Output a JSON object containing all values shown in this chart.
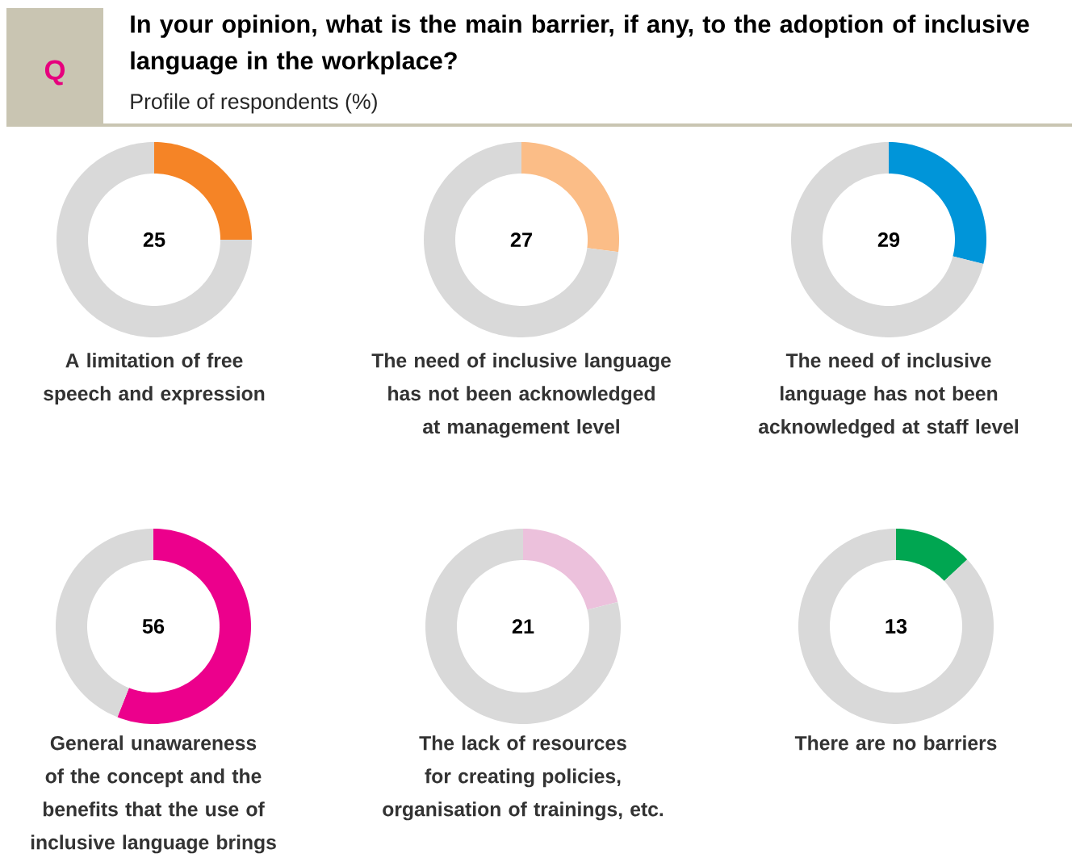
{
  "chart_data": [
    {
      "type": "other",
      "title": "In your opinion, what is the main barrier, if any, to the adoption of inclusive language in the workplace?",
      "subtitle": "Profile of respondents (%)",
      "annotations": [
        "Q"
      ]
    },
    {
      "type": "donut",
      "title": "A limitation of free speech and expression",
      "categories": [
        null,
        null
      ],
      "values": [
        25,
        75
      ],
      "colors": [
        "#f58426",
        "#d9d9d9"
      ],
      "annotations": [
        "25"
      ]
    },
    {
      "type": "donut",
      "title": "The need of inclusive language has not been acknowledged at management level",
      "categories": [
        null,
        null
      ],
      "values": [
        27,
        73
      ],
      "colors": [
        "#fbbd87",
        "#d9d9d9"
      ],
      "annotations": [
        "27"
      ]
    },
    {
      "type": "donut",
      "title": "The need of inclusive language has not been acknowledged at staff level",
      "categories": [
        null,
        null
      ],
      "values": [
        29,
        71
      ],
      "colors": [
        "#0095d9",
        "#d9d9d9"
      ],
      "annotations": [
        "29"
      ]
    },
    {
      "type": "donut",
      "title": "General unawareness of the concept and the benefits that the use of inclusive language brings",
      "categories": [
        null,
        null
      ],
      "values": [
        56,
        44
      ],
      "colors": [
        "#ec008c",
        "#d9d9d9"
      ],
      "annotations": [
        "56"
      ]
    },
    {
      "type": "donut",
      "title": "The lack of resources for creating policies, organisation of trainings, etc.",
      "categories": [
        null,
        null
      ],
      "values": [
        21,
        79
      ],
      "colors": [
        "#ecc1dc",
        "#d9d9d9"
      ],
      "annotations": [
        "21"
      ]
    },
    {
      "type": "donut",
      "title": "There are no barriers",
      "categories": [
        null,
        null
      ],
      "values": [
        13,
        87
      ],
      "colors": [
        "#00a651",
        "#d9d9d9"
      ],
      "annotations": [
        "13"
      ]
    }
  ]
}
